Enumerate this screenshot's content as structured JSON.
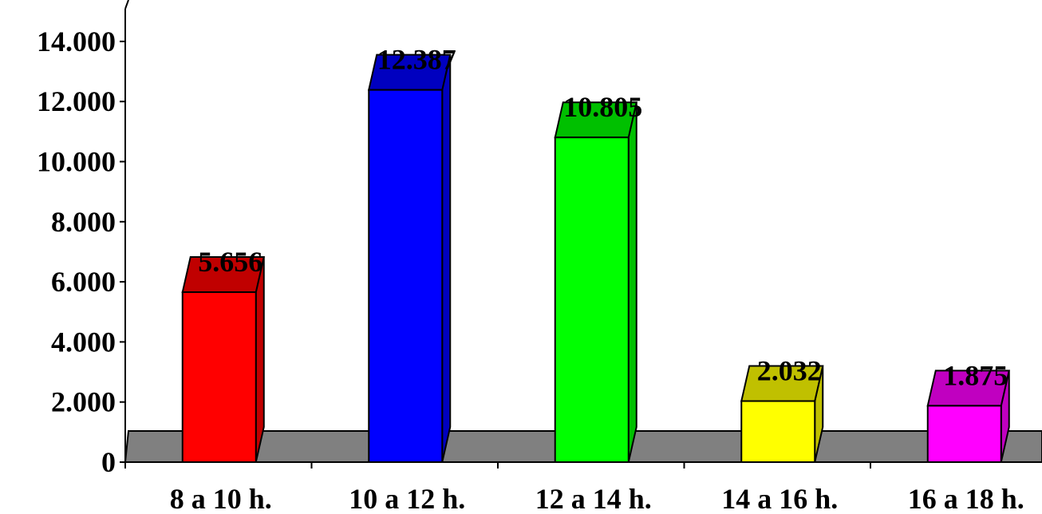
{
  "chart_data": {
    "type": "bar",
    "categories": [
      "8 a 10 h.",
      "10 a 12 h.",
      "12 a 14 h.",
      "14 a 16 h.",
      "16 a 18 h."
    ],
    "values": [
      5656,
      12387,
      10805,
      2032,
      1875
    ],
    "value_labels": [
      "5.656",
      "12.387",
      "10.805",
      "2.032",
      "1.875"
    ],
    "ylim": [
      0,
      14000
    ],
    "yticks": [
      0,
      2000,
      4000,
      6000,
      8000,
      10000,
      12000,
      14000
    ],
    "ytick_labels": [
      "0",
      "2.000",
      "4.000",
      "6.000",
      "8.000",
      "10.000",
      "12.000",
      "14.000"
    ],
    "grid": false,
    "legend": "none",
    "three_d": true,
    "bar_colors": [
      "#ff0000",
      "#0000ff",
      "#00ff00",
      "#ffff00",
      "#ff00ff"
    ],
    "bar_top_colors": [
      "#c00000",
      "#0000c0",
      "#00c000",
      "#c0c000",
      "#c000c0"
    ],
    "floor_color": "#808080"
  }
}
